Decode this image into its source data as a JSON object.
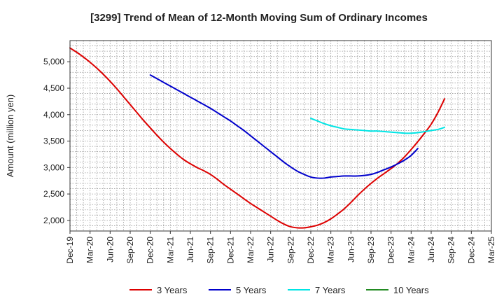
{
  "chart_data": {
    "type": "line",
    "title": "[3299]  Trend of Mean of 12-Month Moving Sum of Ordinary Incomes",
    "xlabel": "",
    "ylabel": "Amount (million yen)",
    "ylim": [
      1800,
      5400
    ],
    "yticks": [
      2000,
      2500,
      3000,
      3500,
      4000,
      4500,
      5000
    ],
    "ytick_labels": [
      "2,000",
      "2,500",
      "3,000",
      "3,500",
      "4,000",
      "4,500",
      "5,000"
    ],
    "x_start": "Dec-19",
    "x_months": 63,
    "x_tick_labels": [
      "Dec-19",
      "Mar-20",
      "Jun-20",
      "Sep-20",
      "Dec-20",
      "Mar-21",
      "Jun-21",
      "Sep-21",
      "Dec-21",
      "Mar-22",
      "Jun-22",
      "Sep-22",
      "Dec-22",
      "Mar-23",
      "Jun-23",
      "Sep-23",
      "Dec-23",
      "Mar-24",
      "Jun-24",
      "Sep-24",
      "Dec-24",
      "Mar-25"
    ],
    "grid": true,
    "legend_position": "bottom",
    "series": [
      {
        "name": "3 Years",
        "color": "#dd0000",
        "start_index": 0,
        "values": [
          5260,
          5180,
          5090,
          4990,
          4880,
          4760,
          4630,
          4490,
          4340,
          4190,
          4040,
          3890,
          3750,
          3610,
          3480,
          3360,
          3250,
          3150,
          3070,
          3000,
          2940,
          2870,
          2780,
          2680,
          2590,
          2500,
          2410,
          2320,
          2240,
          2160,
          2080,
          2000,
          1930,
          1880,
          1860,
          1860,
          1880,
          1910,
          1960,
          2030,
          2120,
          2220,
          2340,
          2470,
          2590,
          2700,
          2800,
          2890,
          2980,
          3080,
          3200,
          3340,
          3490,
          3650,
          3820,
          4040,
          4300
        ]
      },
      {
        "name": "5 Years",
        "color": "#0000cc",
        "start_index": 12,
        "values": [
          4750,
          4680,
          4610,
          4540,
          4470,
          4400,
          4330,
          4260,
          4190,
          4120,
          4040,
          3960,
          3880,
          3790,
          3700,
          3600,
          3500,
          3400,
          3300,
          3200,
          3100,
          3010,
          2930,
          2870,
          2820,
          2800,
          2800,
          2820,
          2830,
          2840,
          2840,
          2840,
          2850,
          2870,
          2910,
          2960,
          3010,
          3070,
          3140,
          3230,
          3360
        ]
      },
      {
        "name": "7 Years",
        "color": "#00e5e5",
        "start_index": 36,
        "values": [
          3930,
          3880,
          3830,
          3790,
          3760,
          3730,
          3720,
          3710,
          3700,
          3690,
          3690,
          3680,
          3670,
          3660,
          3650,
          3650,
          3660,
          3680,
          3700,
          3720,
          3760
        ]
      },
      {
        "name": "10 Years",
        "color": "#228b22",
        "start_index": 0,
        "values": []
      }
    ]
  }
}
